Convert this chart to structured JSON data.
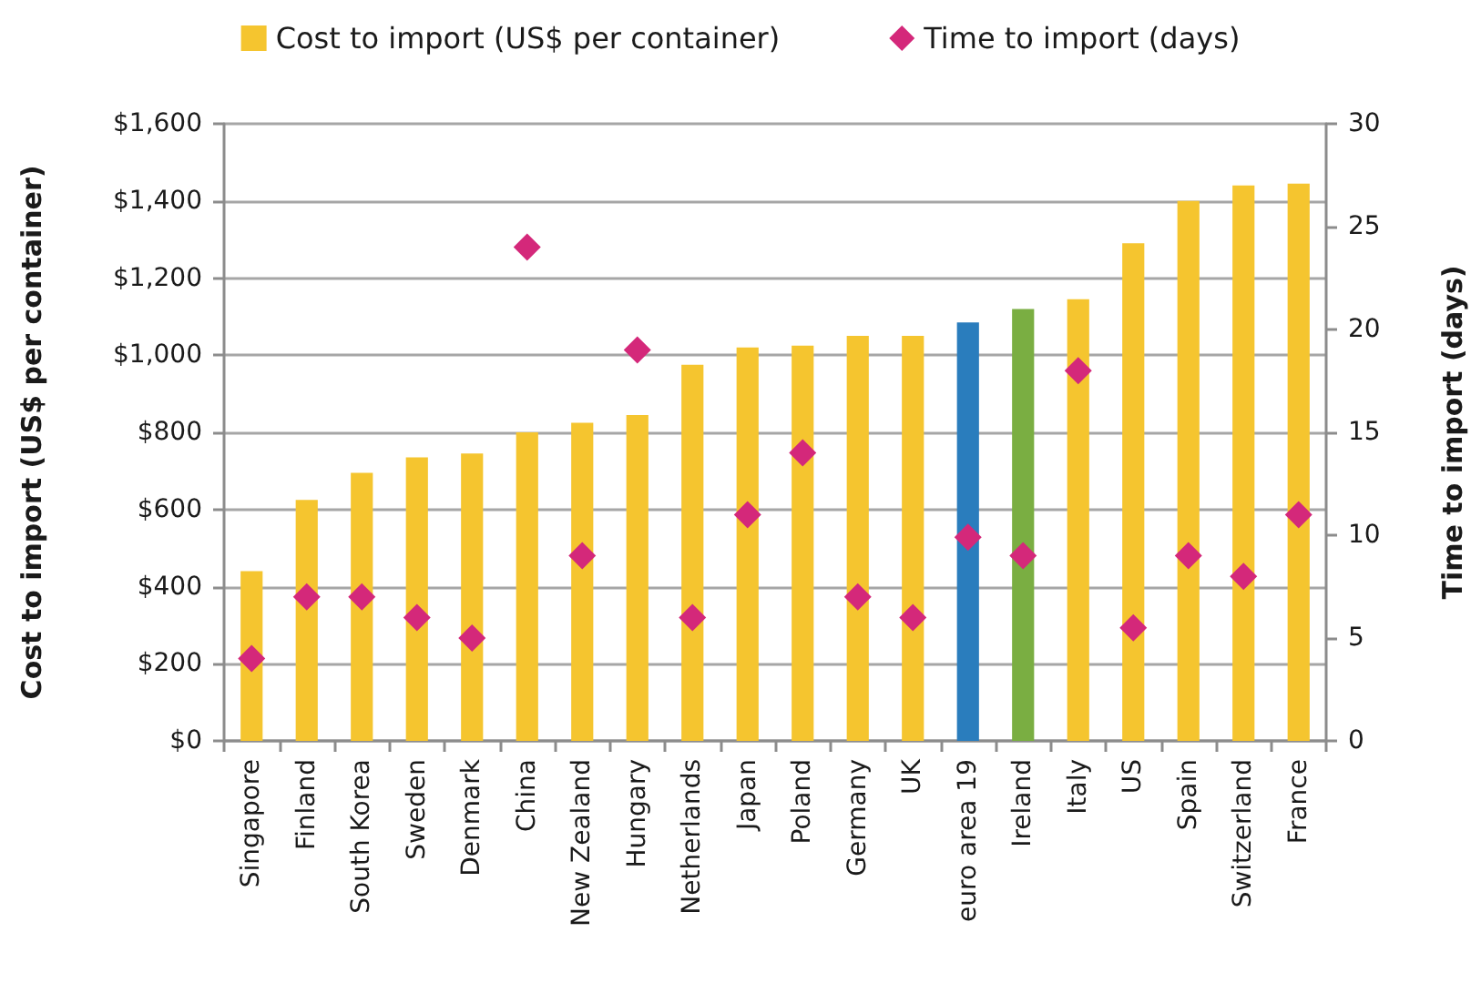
{
  "chart_data": {
    "type": "bar",
    "categories": [
      "Singapore",
      "Finland",
      "South Korea",
      "Sweden",
      "Denmark",
      "China",
      "New Zealand",
      "Hungary",
      "Netherlands",
      "Japan",
      "Poland",
      "Germany",
      "UK",
      "euro area 19",
      "Ireland",
      "Italy",
      "US",
      "Spain",
      "Switzerland",
      "France"
    ],
    "series": [
      {
        "name": "Cost to import (US$ per container)",
        "color": "#f5c52f",
        "colors": [
          "#f5c52f",
          "#f5c52f",
          "#f5c52f",
          "#f5c52f",
          "#f5c52f",
          "#f5c52f",
          "#f5c52f",
          "#f5c52f",
          "#f5c52f",
          "#f5c52f",
          "#f5c52f",
          "#f5c52f",
          "#f5c52f",
          "#2a7dbd",
          "#7aae42",
          "#f5c52f",
          "#f5c52f",
          "#f5c52f",
          "#f5c52f",
          "#f5c52f"
        ],
        "values": [
          440,
          625,
          695,
          735,
          745,
          800,
          825,
          845,
          975,
          1020,
          1025,
          1050,
          1050,
          1085,
          1120,
          1145,
          1290,
          1400,
          1440,
          1445
        ]
      },
      {
        "name": "Time to import (days)",
        "type": "scatter",
        "axis": "y2",
        "color": "#d4287a",
        "values": [
          4,
          7,
          7,
          6,
          5,
          24,
          9,
          19,
          6,
          11,
          14,
          7,
          6,
          9.9,
          9,
          18,
          5.5,
          9,
          8,
          11
        ]
      }
    ],
    "ylabel": "Cost to import (US$ per container)",
    "y2label": "Time to import (days)",
    "ylim": [
      0,
      1600
    ],
    "yticks": [
      {
        "value": 0,
        "label": "$0"
      },
      {
        "value": 200,
        "label": "$200"
      },
      {
        "value": 400,
        "label": "$400"
      },
      {
        "value": 600,
        "label": "$600"
      },
      {
        "value": 800,
        "label": "$800"
      },
      {
        "value": 1000,
        "label": "$1,000"
      },
      {
        "value": 1200,
        "label": "$1,200"
      },
      {
        "value": 1400,
        "label": "$1,400"
      },
      {
        "value": 1600,
        "label": "$1,600"
      }
    ],
    "y2lim": [
      0,
      30
    ],
    "y2ticks": [
      0,
      5,
      10,
      15,
      20,
      25,
      30
    ],
    "grid": "y",
    "legend": "top",
    "marker": "diamond"
  }
}
